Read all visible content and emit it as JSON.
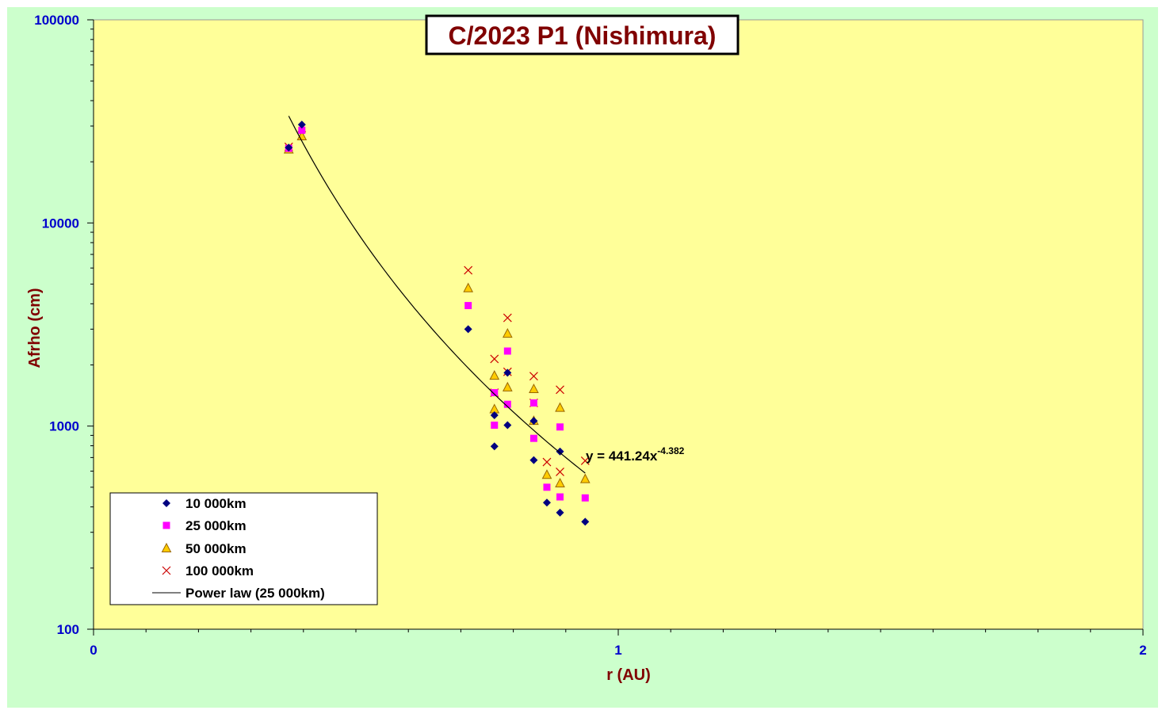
{
  "chart_data": {
    "type": "scatter",
    "title": "C/2023 P1 (Nishimura)",
    "xlabel": "r (AU)",
    "ylabel": "Afrho (cm)",
    "x_range": [
      0,
      2
    ],
    "y_range": [
      100,
      100000
    ],
    "y_scale": "log",
    "x_ticks": [
      "0",
      "1",
      "2"
    ],
    "y_ticks": [
      "100",
      "1000",
      "10000",
      "100000"
    ],
    "grid": false,
    "legend_position": "bottom-left",
    "colors": {
      "outer_background": "#ccffcc",
      "plot_background": "#ffff99",
      "title_text": "#800000",
      "axis_label_text": "#800000",
      "tick_label_text": "#0000cc",
      "diamond": "#000080",
      "square": "#ff00ff",
      "triangle_fill": "#ffcc00",
      "triangle_stroke": "#996600",
      "cross": "#cc0000",
      "fit_line": "#000000"
    },
    "series": [
      {
        "name": "10 000km",
        "marker": "diamond",
        "points": [
          [
            0.372,
            23500
          ],
          [
            0.397,
            30500
          ],
          [
            0.714,
            3000
          ],
          [
            0.764,
            795
          ],
          [
            0.764,
            1130
          ],
          [
            0.789,
            1010
          ],
          [
            0.789,
            1830
          ],
          [
            0.839,
            680
          ],
          [
            0.839,
            1060
          ],
          [
            0.864,
            420
          ],
          [
            0.889,
            750
          ],
          [
            0.889,
            375
          ],
          [
            0.937,
            338
          ]
        ]
      },
      {
        "name": "25 000km",
        "marker": "square",
        "points": [
          [
            0.372,
            23300
          ],
          [
            0.397,
            28600
          ],
          [
            0.714,
            3920
          ],
          [
            0.764,
            1460
          ],
          [
            0.764,
            1010
          ],
          [
            0.789,
            2340
          ],
          [
            0.789,
            1280
          ],
          [
            0.839,
            1300
          ],
          [
            0.839,
            870
          ],
          [
            0.864,
            500
          ],
          [
            0.889,
            990
          ],
          [
            0.889,
            448
          ],
          [
            0.937,
            443
          ]
        ]
      },
      {
        "name": "50 000km",
        "marker": "triangle",
        "points": [
          [
            0.372,
            23000
          ],
          [
            0.397,
            26700
          ],
          [
            0.714,
            4770
          ],
          [
            0.764,
            1770
          ],
          [
            0.764,
            1210
          ],
          [
            0.789,
            2850
          ],
          [
            0.789,
            1550
          ],
          [
            0.839,
            1520
          ],
          [
            0.839,
            1060
          ],
          [
            0.864,
            575
          ],
          [
            0.889,
            1230
          ],
          [
            0.889,
            522
          ],
          [
            0.937,
            548
          ]
        ]
      },
      {
        "name": "100 000km",
        "marker": "x",
        "points": [
          [
            0.372,
            23700
          ],
          [
            0.397,
            27000
          ],
          [
            0.714,
            5850
          ],
          [
            0.764,
            2140
          ],
          [
            0.764,
            1460
          ],
          [
            0.789,
            3410
          ],
          [
            0.789,
            1850
          ],
          [
            0.839,
            1760
          ],
          [
            0.839,
            1300
          ],
          [
            0.864,
            665
          ],
          [
            0.889,
            1510
          ],
          [
            0.889,
            595
          ],
          [
            0.937,
            675
          ]
        ]
      },
      {
        "name": "Power law (25 000km)",
        "type": "line",
        "formula": {
          "coefficient": 441.24,
          "exponent": -4.382
        },
        "x_range": [
          0.372,
          0.937
        ]
      }
    ],
    "annotations": [
      {
        "text_main": "y = 441.24x",
        "text_exponent": "-4.382",
        "x": 0.93,
        "y": 680
      }
    ]
  }
}
